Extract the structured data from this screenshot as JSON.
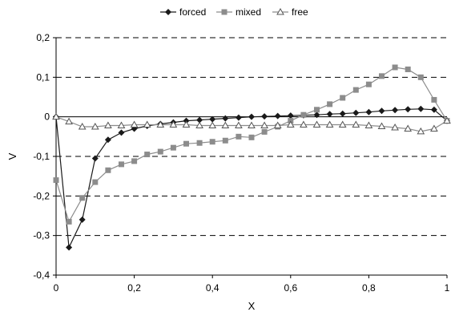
{
  "chart_data": {
    "type": "line",
    "title": "",
    "xlabel": "X",
    "ylabel": "V",
    "xlim": [
      0,
      1
    ],
    "ylim": [
      -0.4,
      0.2
    ],
    "x_ticks": [
      "0",
      "0,2",
      "0,4",
      "0,6",
      "0,8",
      "1"
    ],
    "y_ticks": [
      "0,2",
      "0,1",
      "0",
      "-0,1",
      "-0,2",
      "-0,3",
      "-0,4"
    ],
    "grid": "horizontal dashed",
    "legend_position": "top",
    "series": [
      {
        "name": "forced",
        "marker": "diamond",
        "color": "#1a1a1a",
        "x": [
          0,
          0.033,
          0.067,
          0.1,
          0.133,
          0.167,
          0.2,
          0.233,
          0.267,
          0.3,
          0.333,
          0.367,
          0.4,
          0.433,
          0.467,
          0.5,
          0.533,
          0.567,
          0.6,
          0.633,
          0.667,
          0.7,
          0.733,
          0.767,
          0.8,
          0.833,
          0.867,
          0.9,
          0.933,
          0.967,
          1
        ],
        "y": [
          0,
          -0.33,
          -0.26,
          -0.105,
          -0.058,
          -0.04,
          -0.03,
          -0.023,
          -0.018,
          -0.014,
          -0.01,
          -0.008,
          -0.006,
          -0.004,
          -0.002,
          0,
          0.001,
          0.002,
          0.003,
          0.004,
          0.005,
          0.007,
          0.008,
          0.01,
          0.012,
          0.015,
          0.017,
          0.019,
          0.02,
          0.018,
          -0.01
        ]
      },
      {
        "name": "mixed",
        "marker": "square",
        "color": "#8c8c8c",
        "x": [
          0,
          0.033,
          0.067,
          0.1,
          0.133,
          0.167,
          0.2,
          0.233,
          0.267,
          0.3,
          0.333,
          0.367,
          0.4,
          0.433,
          0.467,
          0.5,
          0.533,
          0.567,
          0.6,
          0.633,
          0.667,
          0.7,
          0.733,
          0.767,
          0.8,
          0.833,
          0.867,
          0.9,
          0.933,
          0.967,
          1
        ],
        "y": [
          -0.16,
          -0.265,
          -0.205,
          -0.165,
          -0.135,
          -0.12,
          -0.112,
          -0.095,
          -0.088,
          -0.078,
          -0.068,
          -0.066,
          -0.063,
          -0.06,
          -0.05,
          -0.052,
          -0.038,
          -0.025,
          -0.01,
          0.005,
          0.018,
          0.032,
          0.048,
          0.068,
          0.082,
          0.103,
          0.125,
          0.12,
          0.1,
          0.043,
          -0.01
        ]
      },
      {
        "name": "free",
        "marker": "triangle",
        "color": "#8c8c8c",
        "x": [
          0,
          0.033,
          0.067,
          0.1,
          0.133,
          0.167,
          0.2,
          0.233,
          0.267,
          0.3,
          0.333,
          0.367,
          0.4,
          0.433,
          0.467,
          0.5,
          0.533,
          0.567,
          0.6,
          0.633,
          0.667,
          0.7,
          0.733,
          0.767,
          0.8,
          0.833,
          0.867,
          0.9,
          0.933,
          0.967,
          1
        ],
        "y": [
          0,
          -0.012,
          -0.025,
          -0.025,
          -0.022,
          -0.022,
          -0.02,
          -0.02,
          -0.02,
          -0.02,
          -0.02,
          -0.022,
          -0.022,
          -0.022,
          -0.022,
          -0.022,
          -0.022,
          -0.022,
          -0.02,
          -0.02,
          -0.02,
          -0.02,
          -0.02,
          -0.02,
          -0.022,
          -0.024,
          -0.027,
          -0.03,
          -0.037,
          -0.03,
          -0.01
        ]
      }
    ]
  }
}
